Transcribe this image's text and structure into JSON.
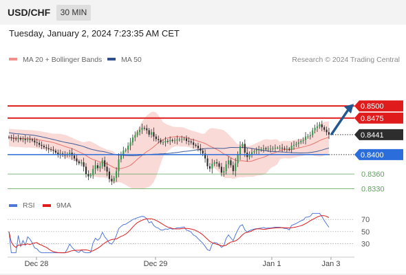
{
  "header": {
    "symbol": "USD/CHF",
    "timeframe": "30 MIN",
    "datetime": "Tuesday, January 2, 2024 7:23:35 AM CET"
  },
  "colors": {
    "candle_up": "#2e9e4a",
    "candle_down": "#2a2a2a",
    "ma20": "#e8736b",
    "band_fill": "#f6c6c1",
    "ma50": "#3c5a96",
    "resistance": "#e01b1b",
    "current": "#2d2d2d",
    "pivot": "#2a6ddb",
    "support": "#5aa35a",
    "arrow": "#23578f",
    "rsi": "#4f76d9",
    "rsi_ma": "#e01b1b"
  },
  "chart_data": [
    {
      "type": "candlestick",
      "instrument": "USD/CHF",
      "timeframe": "30 MIN",
      "legend": [
        {
          "name": "MA 20 + Bollinger Bands",
          "color": "#f0908a"
        },
        {
          "name": "MA 50",
          "color": "#2f4f8f"
        }
      ],
      "legend_position": "top-left",
      "credit": "Research © 2024 Trading Central",
      "ylim": [
        0.8322,
        0.8568
      ],
      "x_tick_labels": [
        "Dec 28",
        "Dec 29",
        "Jan 1",
        "Jan 3"
      ],
      "levels": [
        {
          "value": 0.85,
          "label": "0.8500",
          "kind": "resistance"
        },
        {
          "value": 0.8475,
          "label": "0.8475",
          "kind": "resistance"
        },
        {
          "value": 0.8441,
          "label": "0.8441",
          "kind": "current"
        },
        {
          "value": 0.84,
          "label": "0.8400",
          "kind": "pivot"
        },
        {
          "value": 0.836,
          "label": "0.8360",
          "kind": "support"
        },
        {
          "value": 0.833,
          "label": "0.8330",
          "kind": "support"
        }
      ],
      "close_series": [
        0.8435,
        0.8434,
        0.8433,
        0.8432,
        0.8434,
        0.8431,
        0.8432,
        0.843,
        0.8432,
        0.8431,
        0.8429,
        0.8425,
        0.8424,
        0.842,
        0.8418,
        0.8415,
        0.8413,
        0.8411,
        0.841,
        0.8408,
        0.8404,
        0.84,
        0.8402,
        0.84,
        0.8398,
        0.8401,
        0.8404,
        0.8398,
        0.8392,
        0.8386,
        0.8382,
        0.8384,
        0.8375,
        0.836,
        0.8355,
        0.8358,
        0.837,
        0.8378,
        0.8372,
        0.8376,
        0.8388,
        0.8375,
        0.8365,
        0.835,
        0.8345,
        0.8352,
        0.8366,
        0.839,
        0.84,
        0.8408,
        0.841,
        0.8418,
        0.8425,
        0.8435,
        0.844,
        0.8446,
        0.8451,
        0.8455,
        0.8454,
        0.845,
        0.8441,
        0.8446,
        0.8437,
        0.8432,
        0.843,
        0.8425,
        0.8425,
        0.8428,
        0.8427,
        0.843,
        0.8428,
        0.8429,
        0.8431,
        0.8431,
        0.8432,
        0.8433,
        0.8428,
        0.8427,
        0.8425,
        0.842,
        0.8418,
        0.8413,
        0.8408,
        0.8402,
        0.8392,
        0.8376,
        0.8371,
        0.8381,
        0.8384,
        0.8382,
        0.8375,
        0.8363,
        0.8366,
        0.838,
        0.8388,
        0.8378,
        0.8366,
        0.8382,
        0.8399,
        0.8417,
        0.8422,
        0.8404,
        0.8395,
        0.8401,
        0.8405,
        0.8407,
        0.8409,
        0.841,
        0.8411,
        0.8413,
        0.8411,
        0.8412,
        0.8412,
        0.8413,
        0.8414,
        0.8414,
        0.8414,
        0.8413,
        0.8412,
        0.8412,
        0.841,
        0.8418,
        0.842,
        0.8422,
        0.8425,
        0.8428,
        0.843,
        0.8437,
        0.8438,
        0.844,
        0.845,
        0.8455,
        0.8458,
        0.8462,
        0.8456,
        0.8451,
        0.8446,
        0.8441
      ]
    },
    {
      "type": "line",
      "title": "RSI",
      "legend": [
        {
          "name": "RSI",
          "color": "#4f76d9"
        },
        {
          "name": "9MA",
          "color": "#e01b1b"
        }
      ],
      "ylim": [
        10,
        85
      ],
      "y_tick_labels": [
        70,
        50,
        30
      ],
      "reference_lines": [
        70,
        50,
        30
      ],
      "x_tick_labels": [
        "Dec 28",
        "Dec 29",
        "Jan 1",
        "Jan 3"
      ]
    }
  ]
}
